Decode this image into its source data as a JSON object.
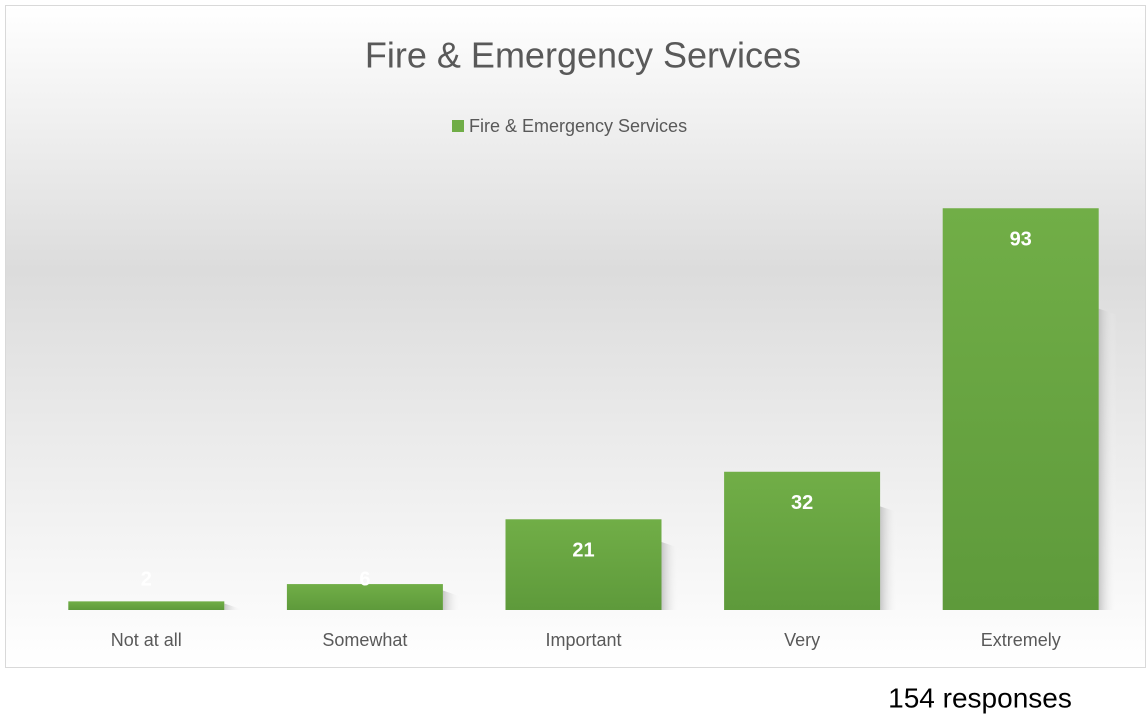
{
  "chart_data": {
    "type": "bar",
    "title": "Fire & Emergency Services",
    "series": [
      {
        "name": "Fire & Emergency Services",
        "color": "#70ad47",
        "values": [
          2,
          6,
          21,
          32,
          93
        ]
      }
    ],
    "categories": [
      "Not at all",
      "Somewhat",
      "Important",
      "Very",
      "Extremely"
    ],
    "ylim": [
      0,
      100
    ],
    "annotation": "154 responses"
  }
}
